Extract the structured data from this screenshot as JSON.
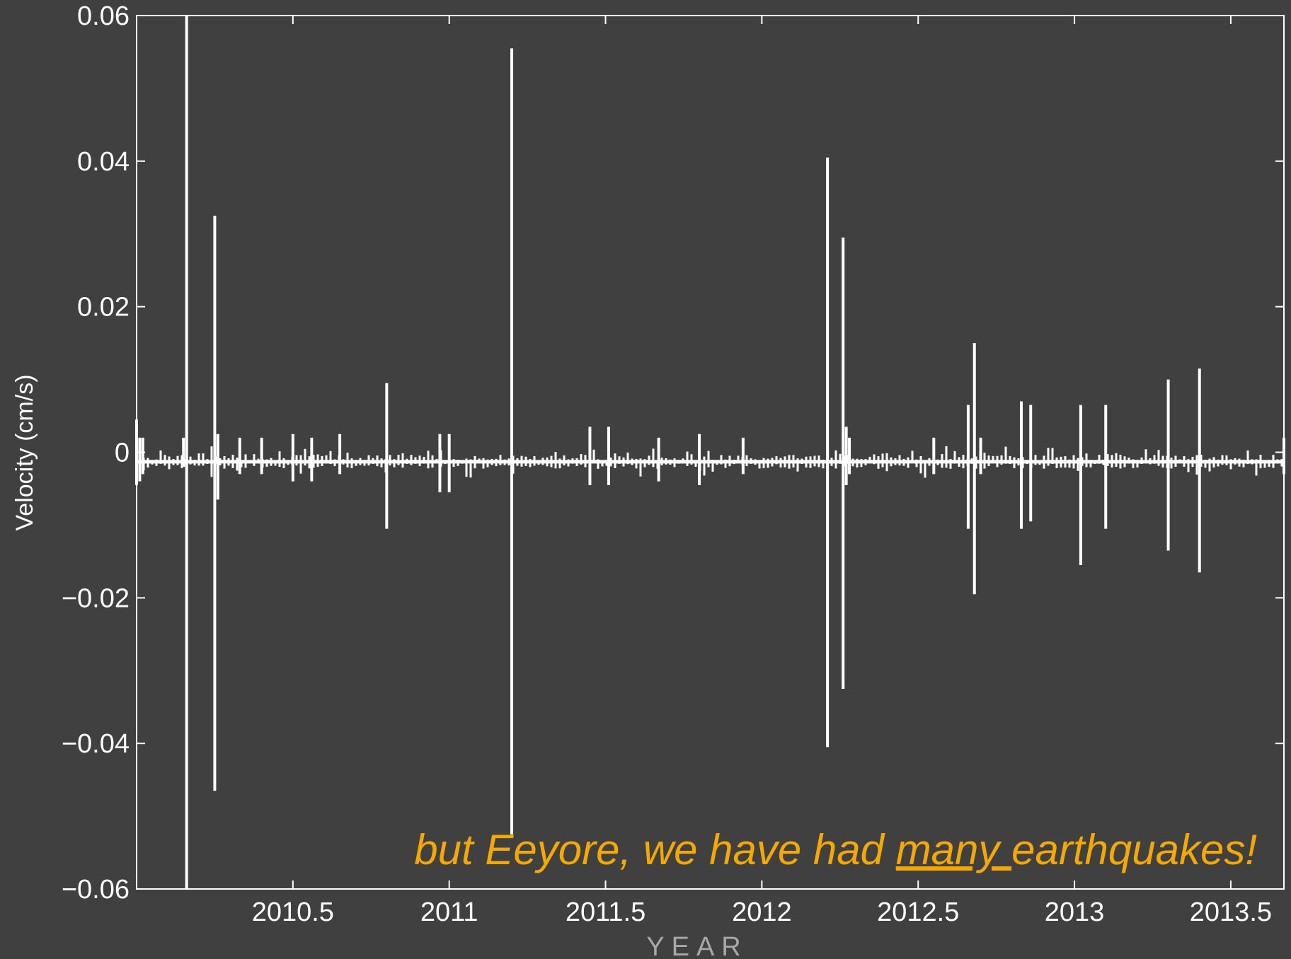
{
  "chart_data": {
    "type": "line",
    "xlabel": "YEAR",
    "ylabel": "Velocity (cm/s)",
    "xlim": [
      2010.0,
      2013.67
    ],
    "ylim": [
      -0.06,
      0.06
    ],
    "x_ticks": [
      2010.5,
      2011,
      2011.5,
      2012,
      2012.5,
      2013,
      2013.5
    ],
    "x_tick_labels": [
      "2010.5",
      "2011",
      "2011.5",
      "2012",
      "2012.5",
      "2013",
      "2013.5"
    ],
    "y_ticks": [
      0.06,
      0.04,
      0.02,
      0,
      -0.02,
      -0.04,
      -0.06
    ],
    "y_tick_labels": [
      "0.06",
      "0.04",
      "0.02",
      "0",
      "−0.02",
      "−0.04",
      "−0.06"
    ],
    "baseline": -0.0013,
    "colors": {
      "background": "#404040",
      "trace": "#ffffff",
      "annotation": "#f5a800",
      "xlabel": "#a8a8a8"
    },
    "series": [
      {
        "x": [
          2010.0,
          2010.01,
          2010.02,
          2010.15,
          2010.16,
          2010.25,
          2010.26,
          2010.33,
          2010.4,
          2010.5,
          2010.56,
          2010.65,
          2010.8,
          2010.97,
          2011.0,
          2011.2,
          2011.45,
          2011.51,
          2011.67,
          2011.8,
          2011.94,
          2012.21,
          2012.26,
          2012.27,
          2012.28,
          2012.55,
          2012.66,
          2012.68,
          2012.7,
          2012.83,
          2012.86,
          2013.02,
          2013.1,
          2013.3,
          2013.4,
          2013.67
        ],
        "y_max": [
          0.0045,
          0.002,
          0.002,
          0.002,
          0.06,
          0.0325,
          0.0025,
          0.002,
          0.002,
          0.0025,
          0.002,
          0.0025,
          0.0095,
          0.0025,
          0.0025,
          0.0555,
          0.0035,
          0.0035,
          0.002,
          0.0025,
          0.002,
          0.0405,
          0.0295,
          0.0035,
          0.002,
          0.002,
          0.0065,
          0.015,
          0.002,
          0.007,
          0.0065,
          0.0065,
          0.0065,
          0.01,
          0.0115,
          0.002
        ],
        "y_min": [
          -0.0045,
          -0.004,
          -0.003,
          -0.002,
          -0.06,
          -0.0465,
          -0.0065,
          -0.003,
          -0.003,
          -0.004,
          -0.004,
          -0.003,
          -0.0105,
          -0.0055,
          -0.0055,
          -0.0525,
          -0.0045,
          -0.0045,
          -0.004,
          -0.0045,
          -0.003,
          -0.0405,
          -0.0325,
          -0.0045,
          -0.003,
          -0.003,
          -0.0105,
          -0.0195,
          -0.003,
          -0.0105,
          -0.0095,
          -0.0155,
          -0.0105,
          -0.0135,
          -0.0165,
          -0.003
        ]
      }
    ],
    "annotation": {
      "before": "but Eeyore, we have had ",
      "underlined": "many ",
      "after": "earthquakes!"
    }
  }
}
